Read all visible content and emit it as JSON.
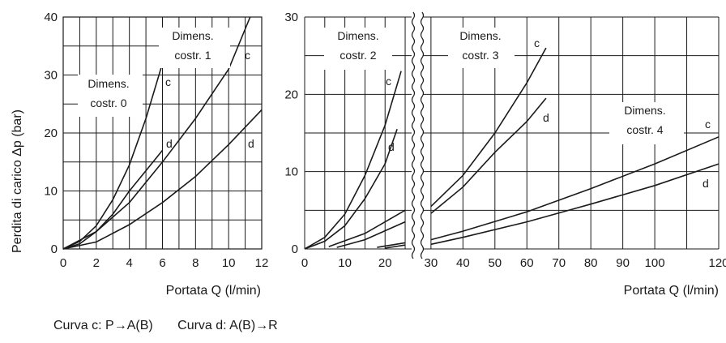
{
  "chart_data": [
    {
      "type": "line",
      "xlabel": "Portata Q (l/min)",
      "ylabel": "Perdita di carico Δp (bar)",
      "xlim": [
        0,
        12
      ],
      "ylim": [
        0,
        40
      ],
      "x_ticks": [
        "0",
        "2",
        "4",
        "6",
        "8",
        "10",
        "12"
      ],
      "y_ticks": [
        "0",
        "10",
        "20",
        "30",
        "40"
      ],
      "grid": true,
      "groups": [
        {
          "label": "Dimens.\ncostr. 0",
          "series": [
            {
              "name": "c",
              "points": [
                [
                  0,
                  0
                ],
                [
                  1,
                  1.3
                ],
                [
                  2,
                  4
                ],
                [
                  3,
                  8.5
                ],
                [
                  4,
                  14.5
                ],
                [
                  5,
                  22.5
                ],
                [
                  6,
                  32
                ]
              ]
            },
            {
              "name": "d",
              "points": [
                [
                  0,
                  0
                ],
                [
                  1,
                  0.9
                ],
                [
                  2,
                  3
                ],
                [
                  3,
                  6
                ],
                [
                  4,
                  10
                ],
                [
                  5,
                  13.5
                ],
                [
                  6,
                  17
                ]
              ]
            }
          ]
        },
        {
          "label": "Dimens.\ncostr. 1",
          "series": [
            {
              "name": "c",
              "points": [
                [
                  0,
                  0
                ],
                [
                  2,
                  3
                ],
                [
                  4,
                  8
                ],
                [
                  6,
                  15
                ],
                [
                  8,
                  22.5
                ],
                [
                  10,
                  31
                ],
                [
                  11.3,
                  40
                ]
              ]
            },
            {
              "name": "d",
              "points": [
                [
                  0,
                  0
                ],
                [
                  2,
                  1.2
                ],
                [
                  4,
                  4.2
                ],
                [
                  6,
                  8
                ],
                [
                  8,
                  12.5
                ],
                [
                  10,
                  18
                ],
                [
                  12,
                  24
                ]
              ]
            }
          ]
        }
      ]
    },
    {
      "type": "line",
      "xlabel": "Portata Q (l/min)",
      "ylabel": "",
      "xlim": [
        0,
        120
      ],
      "ylim": [
        0,
        30
      ],
      "axis_break": [
        26,
        28
      ],
      "x_ticks": [
        "0",
        "10",
        "20",
        "30",
        "40",
        "50",
        "60",
        "70",
        "80",
        "90",
        "100",
        "120"
      ],
      "y_ticks": [
        "0",
        "10",
        "20",
        "30"
      ],
      "grid": true,
      "groups": [
        {
          "label": "Dimens.\ncostr. 2",
          "series": [
            {
              "name": "c",
              "points": [
                [
                  0,
                  0
                ],
                [
                  5,
                  1.5
                ],
                [
                  10,
                  4.5
                ],
                [
                  15,
                  9.5
                ],
                [
                  20,
                  16
                ],
                [
                  24,
                  23
                ]
              ]
            },
            {
              "name": "d",
              "points": [
                [
                  0,
                  0
                ],
                [
                  5,
                  1
                ],
                [
                  10,
                  3
                ],
                [
                  15,
                  6.5
                ],
                [
                  20,
                  11
                ],
                [
                  23,
                  15.5
                ]
              ]
            }
          ]
        },
        {
          "label": "Dimens.\ncostr. 3",
          "series": [
            {
              "name": "c",
              "points": [
                [
                  6,
                  0.3
                ],
                [
                  15,
                  2
                ],
                [
                  25,
                  5
                ],
                [
                  30,
                  5.5
                ],
                [
                  40,
                  9.5
                ],
                [
                  50,
                  15
                ],
                [
                  60,
                  21.5
                ],
                [
                  66,
                  26
                ]
              ]
            },
            {
              "name": "d",
              "points": [
                [
                  8,
                  0.2
                ],
                [
                  15,
                  1.2
                ],
                [
                  25,
                  3.5
                ],
                [
                  30,
                  4.6
                ],
                [
                  40,
                  8
                ],
                [
                  50,
                  12.5
                ],
                [
                  60,
                  16.5
                ],
                [
                  66,
                  19.5
                ]
              ]
            }
          ]
        },
        {
          "label": "Dimens.\ncostr. 4",
          "series": [
            {
              "name": "c",
              "points": [
                [
                  18,
                  0.2
                ],
                [
                  25,
                  0.8
                ],
                [
                  30,
                  1.2
                ],
                [
                  40,
                  2.3
                ],
                [
                  60,
                  4.8
                ],
                [
                  80,
                  7.8
                ],
                [
                  100,
                  11
                ],
                [
                  120,
                  14.5
                ]
              ]
            },
            {
              "name": "d",
              "points": [
                [
                  20,
                  0.1
                ],
                [
                  25,
                  0.5
                ],
                [
                  30,
                  0.6
                ],
                [
                  40,
                  1.5
                ],
                [
                  60,
                  3.5
                ],
                [
                  80,
                  5.8
                ],
                [
                  100,
                  8.2
                ],
                [
                  120,
                  11
                ]
              ]
            }
          ]
        }
      ]
    }
  ],
  "legend": {
    "curve_c": "Curva c: P→A(B)",
    "curve_d": "Curva d: A(B)→R"
  }
}
